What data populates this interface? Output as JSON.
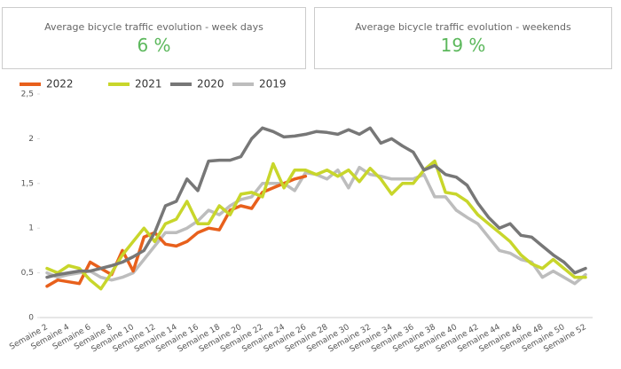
{
  "cards": [
    {
      "title": "Average bicycle traffic evolution - week days",
      "value": "6 %"
    },
    {
      "title": "Average bicycle traffic evolution - weekends",
      "value": "19 %"
    }
  ],
  "chart_data": {
    "type": "line",
    "categories": [
      "Semaine 2",
      null,
      "Semaine 4",
      null,
      "Semaine 6",
      null,
      "Semaine 8",
      null,
      "Semaine 10",
      null,
      "Semaine 12",
      null,
      "Semaine 14",
      null,
      "Semaine 16",
      null,
      "Semaine 18",
      null,
      "Semaine 20",
      null,
      "Semaine 22",
      null,
      "Semaine 24",
      null,
      "Semaine 26",
      null,
      "Semaine 28",
      null,
      "Semaine 30",
      null,
      "Semaine 32",
      null,
      "Semaine 34",
      null,
      "Semaine 36",
      null,
      "Semaine 38",
      null,
      "Semaine 40",
      null,
      "Semaine 42",
      null,
      "Semaine 44",
      null,
      "Semaine 46",
      null,
      "Semaine 48",
      null,
      "Semaine 50",
      null,
      "Semaine 52"
    ],
    "series": [
      {
        "name": "2022",
        "color": "#e8601c",
        "values": [
          0.35,
          0.42,
          0.4,
          0.38,
          0.62,
          0.55,
          0.48,
          0.75,
          0.52,
          0.9,
          0.95,
          0.82,
          0.8,
          0.85,
          0.95,
          1.0,
          0.98,
          1.2,
          1.25,
          1.22,
          1.4,
          1.45,
          1.5,
          1.55,
          1.58,
          null,
          null,
          null,
          null,
          null,
          null,
          null,
          null,
          null,
          null,
          null,
          null,
          null,
          null,
          null,
          null,
          null,
          null,
          null,
          null,
          null,
          null,
          null,
          null,
          null,
          null
        ]
      },
      {
        "name": "2021",
        "color": "#c8d62b",
        "values": [
          0.55,
          0.5,
          0.58,
          0.55,
          0.42,
          0.32,
          0.5,
          0.7,
          0.85,
          1.0,
          0.85,
          1.05,
          1.1,
          1.3,
          1.05,
          1.05,
          1.25,
          1.15,
          1.38,
          1.4,
          1.35,
          1.72,
          1.45,
          1.65,
          1.65,
          1.6,
          1.65,
          1.58,
          1.65,
          1.52,
          1.67,
          1.55,
          1.38,
          1.5,
          1.5,
          1.65,
          1.75,
          1.4,
          1.38,
          1.3,
          1.15,
          1.05,
          0.95,
          0.85,
          0.7,
          0.6,
          0.55,
          0.65,
          0.55,
          0.45,
          0.45
        ]
      },
      {
        "name": "2020",
        "color": "#777777",
        "values": [
          0.45,
          0.48,
          0.5,
          0.52,
          0.52,
          0.55,
          0.58,
          0.62,
          0.68,
          0.75,
          0.95,
          1.25,
          1.3,
          1.55,
          1.42,
          1.75,
          1.76,
          1.76,
          1.8,
          2.0,
          2.12,
          2.08,
          2.02,
          2.03,
          2.05,
          2.08,
          2.07,
          2.05,
          2.1,
          2.05,
          2.12,
          1.95,
          2.0,
          1.92,
          1.85,
          1.65,
          1.7,
          1.6,
          1.57,
          1.48,
          1.28,
          1.12,
          1.0,
          1.05,
          0.92,
          0.9,
          0.8,
          0.7,
          0.62,
          0.5,
          0.55
        ]
      },
      {
        "name": "2019",
        "color": "#bdbdbd",
        "values": [
          0.5,
          0.45,
          0.48,
          0.5,
          0.52,
          0.45,
          0.42,
          0.45,
          0.5,
          0.65,
          0.8,
          0.95,
          0.95,
          1.0,
          1.08,
          1.2,
          1.15,
          1.25,
          1.32,
          1.35,
          1.5,
          1.5,
          1.5,
          1.42,
          1.62,
          1.6,
          1.55,
          1.65,
          1.45,
          1.68,
          1.6,
          1.58,
          1.55,
          1.55,
          1.55,
          1.6,
          1.35,
          1.35,
          1.2,
          1.12,
          1.05,
          0.9,
          0.75,
          0.72,
          0.65,
          0.62,
          0.45,
          0.52,
          0.45,
          0.38,
          0.48
        ]
      }
    ],
    "ylim": [
      0,
      2.5
    ],
    "yticks": [
      0,
      {
        "value": 0.5,
        "label": "0,5"
      },
      1,
      {
        "value": 1.5,
        "label": "1,5"
      },
      2,
      {
        "value": 2.5,
        "label": "2,5"
      }
    ],
    "legend": "top-left",
    "grid": false
  }
}
